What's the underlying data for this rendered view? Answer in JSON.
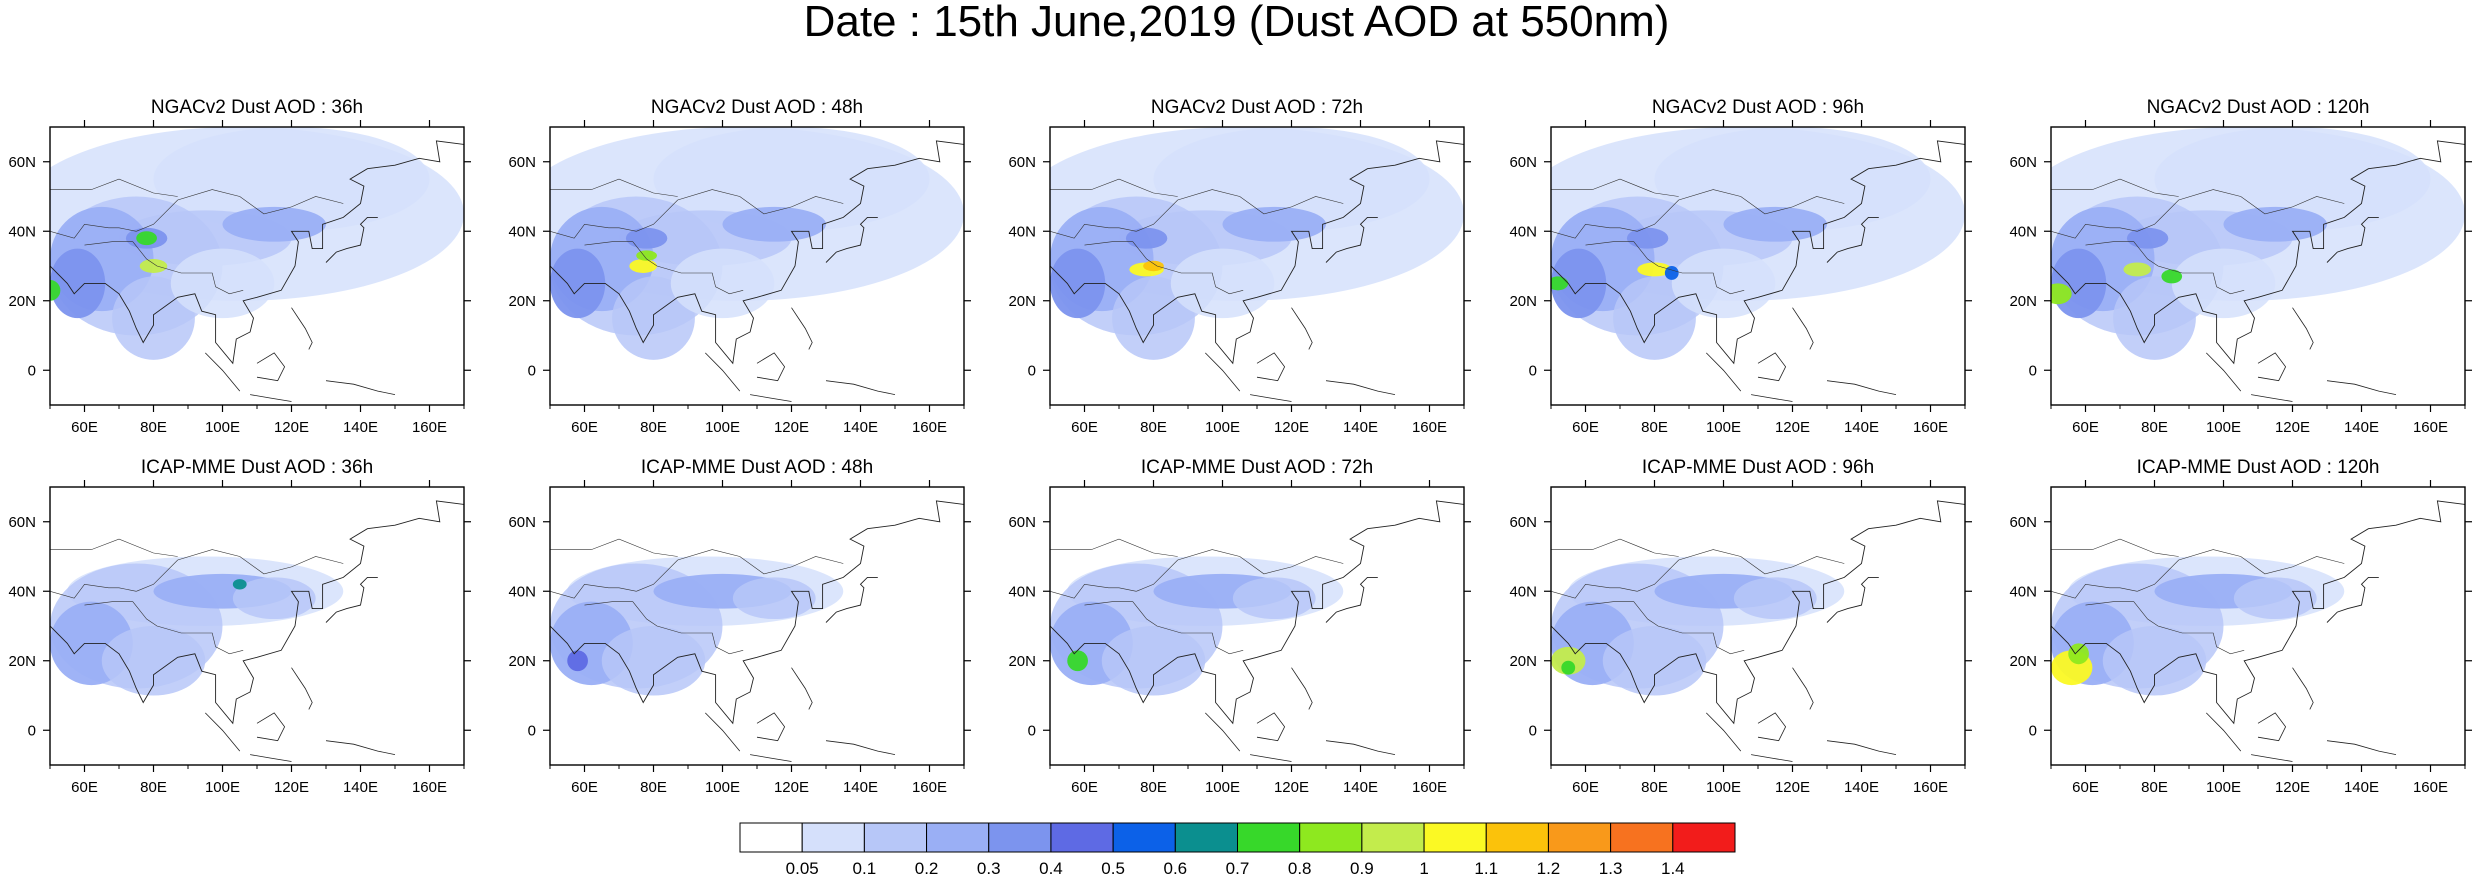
{
  "title": "Date : 15th June,2019 (Dust AOD at 550nm)",
  "rows": [
    {
      "model": "NGACv2",
      "panels": [
        {
          "title": "NGACv2 Dust AOD : 36h"
        },
        {
          "title": "NGACv2 Dust AOD : 48h"
        },
        {
          "title": "NGACv2 Dust AOD : 72h"
        },
        {
          "title": "NGACv2 Dust AOD : 96h"
        },
        {
          "title": "NGACv2 Dust AOD : 120h"
        }
      ]
    },
    {
      "model": "ICAP-MME",
      "panels": [
        {
          "title": "ICAP-MME Dust AOD : 36h"
        },
        {
          "title": "ICAP-MME Dust AOD : 48h"
        },
        {
          "title": "ICAP-MME Dust AOD : 72h"
        },
        {
          "title": "ICAP-MME Dust AOD : 96h"
        },
        {
          "title": "ICAP-MME Dust AOD : 120h"
        }
      ]
    }
  ],
  "axes": {
    "lon_ticks": [
      "60E",
      "80E",
      "100E",
      "120E",
      "140E",
      "160E"
    ],
    "lon_values": [
      60,
      80,
      100,
      120,
      140,
      160
    ],
    "lat_ticks": [
      "60N",
      "40N",
      "20N",
      "0"
    ],
    "lat_values": [
      60,
      40,
      20,
      0
    ],
    "lon_range": [
      50,
      170
    ],
    "lat_range": [
      -10,
      70
    ]
  },
  "colorbar": {
    "labels": [
      "0.05",
      "0.1",
      "0.2",
      "0.3",
      "0.4",
      "0.5",
      "0.6",
      "0.7",
      "0.8",
      "0.9",
      "1",
      "1.1",
      "1.2",
      "1.3",
      "1.4"
    ],
    "colors": [
      "#ffffff",
      "#d5e0fb",
      "#b7c7f8",
      "#9aaff5",
      "#7c94ee",
      "#5e6ae4",
      "#0c61e8",
      "#0b8f8f",
      "#37d82a",
      "#8ee81f",
      "#c3ec4c",
      "#fbf924",
      "#fbc20b",
      "#f9991a",
      "#f7721f",
      "#f21c1b"
    ]
  }
}
